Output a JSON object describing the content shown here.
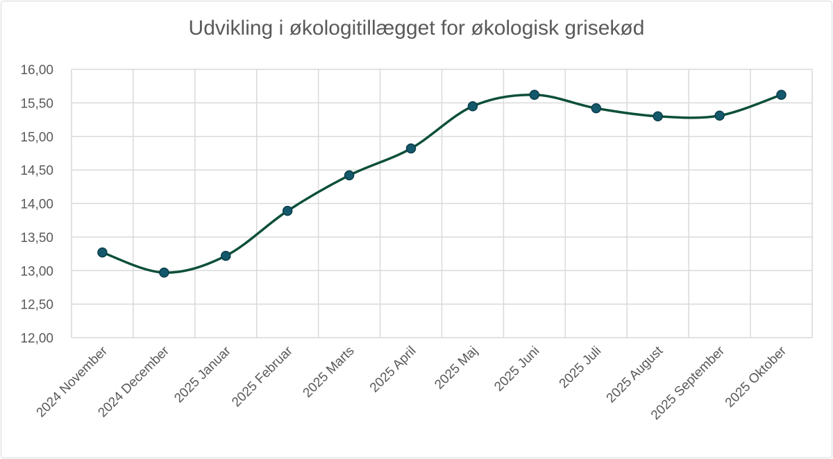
{
  "chart_data": {
    "type": "line",
    "title": "Udvikling i økologitillægget for økologisk grisekød",
    "xlabel": "",
    "ylabel": "",
    "categories": [
      "2024 November",
      "2024 December",
      "2025 Januar",
      "2025 Februar",
      "2025 Marts",
      "2025 April",
      "2025 Maj",
      "2025 Juni",
      "2025 Juli",
      "2025 August",
      "2025 September",
      "2025 Oktober"
    ],
    "series": [
      {
        "values": [
          13.27,
          12.97,
          13.22,
          13.89,
          14.42,
          14.82,
          15.45,
          15.62,
          15.42,
          15.3,
          15.31,
          15.62
        ]
      }
    ],
    "ylim": [
      12,
      16
    ],
    "yticks": [
      "12,00",
      "12,50",
      "13,00",
      "13,50",
      "14,00",
      "14,50",
      "15,00",
      "15,50",
      "16,00"
    ],
    "grid": true,
    "smooth": true,
    "legend": "none",
    "colors": {
      "line": "#0d4f3a",
      "marker_fill": "#14596b",
      "marker_edge": "#0b3d4a",
      "grid": "#d9d9d9",
      "text": "#595959"
    }
  }
}
